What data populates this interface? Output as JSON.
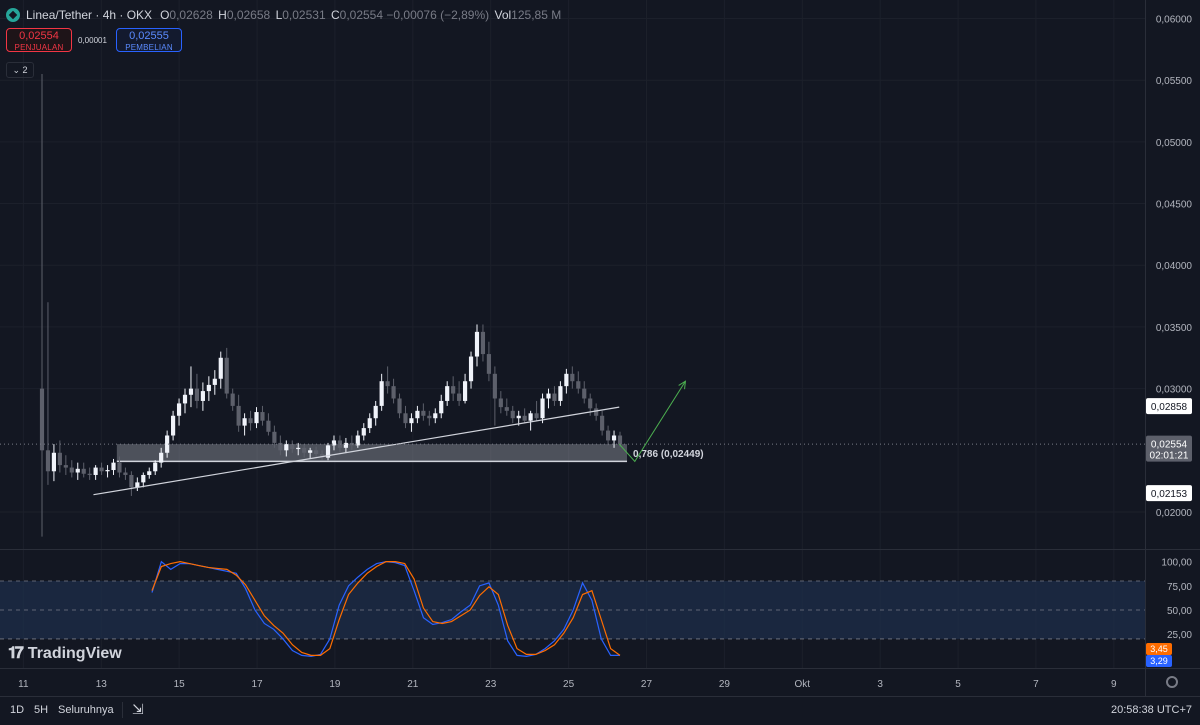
{
  "header": {
    "symbol": "Linea/Tether · 4h · OKX",
    "o_label": "O",
    "o_value": "0,02628",
    "h_label": "H",
    "h_value": "0,02658",
    "l_label": "L",
    "l_value": "0,02531",
    "c_label": "C",
    "c_value": "0,02554",
    "change": "−0,00076 (−2,89%)",
    "vol_label": "Vol",
    "vol_value": "125,85 M"
  },
  "trade": {
    "sell_price": "0,02554",
    "sell_label": "PENJUALAN",
    "spread": "0,00001",
    "buy_price": "0,02555",
    "buy_label": "PEMBELIAN"
  },
  "indicator_toggle": "⌄ 2",
  "brand": "TradingView",
  "footer": {
    "ranges": [
      "1D",
      "5H",
      "Seluruhnya"
    ],
    "time": "20:58:38 UTC+7"
  },
  "colors": {
    "background": "#131722",
    "candle_up": "#f0f3fa",
    "candle_down": "#5d606b",
    "support_zone": "#9598a1",
    "trendline": "#d1d4dc",
    "projection_arrow": "#4caf50",
    "stoch_k": "#2962ff",
    "stoch_d": "#ff6d00",
    "stoch_band": "#1e2d4a"
  },
  "chart_data": [
    {
      "type": "candlestick",
      "ylim": [
        0.017,
        0.0615
      ],
      "y_ticks": [
        "0,06000",
        "0,05500",
        "0,05000",
        "0,04500",
        "0,04000",
        "0,03500",
        "0,03000",
        "0,02000"
      ],
      "y_tick_values": [
        0.06,
        0.055,
        0.05,
        0.045,
        0.04,
        0.035,
        0.03,
        0.02
      ],
      "x_range_days": [
        10.4,
        39.8
      ],
      "x_ticks": [
        {
          "label": "11",
          "day": 11
        },
        {
          "label": "13",
          "day": 13
        },
        {
          "label": "15",
          "day": 15
        },
        {
          "label": "17",
          "day": 17
        },
        {
          "label": "19",
          "day": 19
        },
        {
          "label": "21",
          "day": 21
        },
        {
          "label": "23",
          "day": 23
        },
        {
          "label": "25",
          "day": 25
        },
        {
          "label": "27",
          "day": 27
        },
        {
          "label": "29",
          "day": 29
        },
        {
          "label": "Okt",
          "day": 31
        },
        {
          "label": "3",
          "day": 33
        },
        {
          "label": "5",
          "day": 35
        },
        {
          "label": "7",
          "day": 37
        },
        {
          "label": "9",
          "day": 39
        }
      ],
      "price_labels": [
        {
          "text": "0,02858",
          "value": 0.02858,
          "style": "white"
        },
        {
          "text": "0,02554",
          "sub": "02:01:21",
          "value": 0.02554,
          "style": "grey"
        },
        {
          "text": "0,02153",
          "value": 0.02153,
          "style": "white"
        }
      ],
      "candles": [
        {
          "o": 0.03,
          "h": 0.0555,
          "l": 0.018,
          "c": 0.025
        },
        {
          "o": 0.025,
          "h": 0.037,
          "l": 0.0222,
          "c": 0.0233
        },
        {
          "o": 0.0233,
          "h": 0.0255,
          "l": 0.0225,
          "c": 0.0248
        },
        {
          "o": 0.0248,
          "h": 0.0258,
          "l": 0.0232,
          "c": 0.0238
        },
        {
          "o": 0.0238,
          "h": 0.0246,
          "l": 0.023,
          "c": 0.0236
        },
        {
          "o": 0.0236,
          "h": 0.0242,
          "l": 0.0228,
          "c": 0.0232
        },
        {
          "o": 0.0232,
          "h": 0.024,
          "l": 0.0226,
          "c": 0.0235
        },
        {
          "o": 0.0235,
          "h": 0.024,
          "l": 0.0228,
          "c": 0.0231
        },
        {
          "o": 0.0231,
          "h": 0.0236,
          "l": 0.0226,
          "c": 0.023
        },
        {
          "o": 0.023,
          "h": 0.0238,
          "l": 0.0226,
          "c": 0.0236
        },
        {
          "o": 0.0236,
          "h": 0.024,
          "l": 0.023,
          "c": 0.0233
        },
        {
          "o": 0.0233,
          "h": 0.0238,
          "l": 0.0228,
          "c": 0.0234
        },
        {
          "o": 0.0234,
          "h": 0.0243,
          "l": 0.023,
          "c": 0.024
        },
        {
          "o": 0.024,
          "h": 0.0245,
          "l": 0.0228,
          "c": 0.0232
        },
        {
          "o": 0.0232,
          "h": 0.0236,
          "l": 0.0226,
          "c": 0.023
        },
        {
          "o": 0.023,
          "h": 0.0233,
          "l": 0.0213,
          "c": 0.022
        },
        {
          "o": 0.022,
          "h": 0.0228,
          "l": 0.0217,
          "c": 0.0224
        },
        {
          "o": 0.0224,
          "h": 0.0232,
          "l": 0.022,
          "c": 0.023
        },
        {
          "o": 0.023,
          "h": 0.0236,
          "l": 0.0227,
          "c": 0.0233
        },
        {
          "o": 0.0233,
          "h": 0.0242,
          "l": 0.023,
          "c": 0.024
        },
        {
          "o": 0.024,
          "h": 0.0252,
          "l": 0.0236,
          "c": 0.0248
        },
        {
          "o": 0.0248,
          "h": 0.0266,
          "l": 0.0244,
          "c": 0.0262
        },
        {
          "o": 0.0262,
          "h": 0.0282,
          "l": 0.0258,
          "c": 0.0278
        },
        {
          "o": 0.0278,
          "h": 0.0292,
          "l": 0.027,
          "c": 0.0288
        },
        {
          "o": 0.0288,
          "h": 0.03,
          "l": 0.028,
          "c": 0.0295
        },
        {
          "o": 0.0295,
          "h": 0.0318,
          "l": 0.0285,
          "c": 0.03
        },
        {
          "o": 0.03,
          "h": 0.0312,
          "l": 0.0284,
          "c": 0.029
        },
        {
          "o": 0.029,
          "h": 0.0305,
          "l": 0.0282,
          "c": 0.0298
        },
        {
          "o": 0.0298,
          "h": 0.031,
          "l": 0.029,
          "c": 0.0303
        },
        {
          "o": 0.0303,
          "h": 0.0315,
          "l": 0.0295,
          "c": 0.0308
        },
        {
          "o": 0.0308,
          "h": 0.033,
          "l": 0.03,
          "c": 0.0325
        },
        {
          "o": 0.0325,
          "h": 0.0333,
          "l": 0.0292,
          "c": 0.0296
        },
        {
          "o": 0.0296,
          "h": 0.03,
          "l": 0.0282,
          "c": 0.0286
        },
        {
          "o": 0.0286,
          "h": 0.0295,
          "l": 0.0265,
          "c": 0.027
        },
        {
          "o": 0.027,
          "h": 0.028,
          "l": 0.0262,
          "c": 0.0276
        },
        {
          "o": 0.0276,
          "h": 0.0282,
          "l": 0.0266,
          "c": 0.0272
        },
        {
          "o": 0.0272,
          "h": 0.0285,
          "l": 0.0268,
          "c": 0.0281
        },
        {
          "o": 0.0281,
          "h": 0.0286,
          "l": 0.027,
          "c": 0.0274
        },
        {
          "o": 0.0274,
          "h": 0.028,
          "l": 0.0262,
          "c": 0.0265
        },
        {
          "o": 0.0265,
          "h": 0.027,
          "l": 0.0252,
          "c": 0.0256
        },
        {
          "o": 0.0256,
          "h": 0.0262,
          "l": 0.0246,
          "c": 0.025
        },
        {
          "o": 0.025,
          "h": 0.0258,
          "l": 0.0245,
          "c": 0.0255
        },
        {
          "o": 0.0255,
          "h": 0.0258,
          "l": 0.0248,
          "c": 0.0251
        },
        {
          "o": 0.0251,
          "h": 0.0256,
          "l": 0.0246,
          "c": 0.0252
        },
        {
          "o": 0.0252,
          "h": 0.0255,
          "l": 0.0244,
          "c": 0.0248
        },
        {
          "o": 0.0248,
          "h": 0.0252,
          "l": 0.0243,
          "c": 0.025
        },
        {
          "o": 0.025,
          "h": 0.0253,
          "l": 0.0244,
          "c": 0.0247
        },
        {
          "o": 0.0247,
          "h": 0.025,
          "l": 0.0242,
          "c": 0.0244
        },
        {
          "o": 0.0244,
          "h": 0.0256,
          "l": 0.0242,
          "c": 0.0254
        },
        {
          "o": 0.0254,
          "h": 0.0262,
          "l": 0.025,
          "c": 0.0258
        },
        {
          "o": 0.0258,
          "h": 0.0262,
          "l": 0.0248,
          "c": 0.0252
        },
        {
          "o": 0.0252,
          "h": 0.026,
          "l": 0.0248,
          "c": 0.0256
        },
        {
          "o": 0.0256,
          "h": 0.0262,
          "l": 0.025,
          "c": 0.0254
        },
        {
          "o": 0.0254,
          "h": 0.0266,
          "l": 0.0252,
          "c": 0.0262
        },
        {
          "o": 0.0262,
          "h": 0.0272,
          "l": 0.0258,
          "c": 0.0268
        },
        {
          "o": 0.0268,
          "h": 0.028,
          "l": 0.0264,
          "c": 0.0276
        },
        {
          "o": 0.0276,
          "h": 0.029,
          "l": 0.027,
          "c": 0.0286
        },
        {
          "o": 0.0286,
          "h": 0.0312,
          "l": 0.0282,
          "c": 0.0306
        },
        {
          "o": 0.0306,
          "h": 0.0318,
          "l": 0.0296,
          "c": 0.0302
        },
        {
          "o": 0.0302,
          "h": 0.0308,
          "l": 0.0288,
          "c": 0.0292
        },
        {
          "o": 0.0292,
          "h": 0.0296,
          "l": 0.0276,
          "c": 0.028
        },
        {
          "o": 0.028,
          "h": 0.0286,
          "l": 0.0268,
          "c": 0.0272
        },
        {
          "o": 0.0272,
          "h": 0.028,
          "l": 0.0265,
          "c": 0.0276
        },
        {
          "o": 0.0276,
          "h": 0.0286,
          "l": 0.0272,
          "c": 0.0282
        },
        {
          "o": 0.0282,
          "h": 0.0288,
          "l": 0.0274,
          "c": 0.0278
        },
        {
          "o": 0.0278,
          "h": 0.0282,
          "l": 0.027,
          "c": 0.0276
        },
        {
          "o": 0.0276,
          "h": 0.0284,
          "l": 0.0272,
          "c": 0.028
        },
        {
          "o": 0.028,
          "h": 0.0295,
          "l": 0.0276,
          "c": 0.029
        },
        {
          "o": 0.029,
          "h": 0.0306,
          "l": 0.0286,
          "c": 0.0302
        },
        {
          "o": 0.0302,
          "h": 0.031,
          "l": 0.029,
          "c": 0.0296
        },
        {
          "o": 0.0296,
          "h": 0.0306,
          "l": 0.0286,
          "c": 0.029
        },
        {
          "o": 0.029,
          "h": 0.0312,
          "l": 0.0288,
          "c": 0.0306
        },
        {
          "o": 0.0306,
          "h": 0.033,
          "l": 0.03,
          "c": 0.0326
        },
        {
          "o": 0.0326,
          "h": 0.0352,
          "l": 0.0318,
          "c": 0.0346
        },
        {
          "o": 0.0346,
          "h": 0.0352,
          "l": 0.0322,
          "c": 0.0328
        },
        {
          "o": 0.0328,
          "h": 0.0338,
          "l": 0.0306,
          "c": 0.0312
        },
        {
          "o": 0.0312,
          "h": 0.0318,
          "l": 0.027,
          "c": 0.0292
        },
        {
          "o": 0.0292,
          "h": 0.0298,
          "l": 0.028,
          "c": 0.0285
        },
        {
          "o": 0.0285,
          "h": 0.0292,
          "l": 0.0278,
          "c": 0.0282
        },
        {
          "o": 0.0282,
          "h": 0.0286,
          "l": 0.0272,
          "c": 0.0276
        },
        {
          "o": 0.0276,
          "h": 0.0282,
          "l": 0.027,
          "c": 0.0278
        },
        {
          "o": 0.0278,
          "h": 0.0284,
          "l": 0.0272,
          "c": 0.0274
        },
        {
          "o": 0.0274,
          "h": 0.0282,
          "l": 0.0266,
          "c": 0.028
        },
        {
          "o": 0.028,
          "h": 0.029,
          "l": 0.0274,
          "c": 0.0276
        },
        {
          "o": 0.0276,
          "h": 0.0296,
          "l": 0.0272,
          "c": 0.0292
        },
        {
          "o": 0.0292,
          "h": 0.03,
          "l": 0.0284,
          "c": 0.0296
        },
        {
          "o": 0.0296,
          "h": 0.0302,
          "l": 0.0286,
          "c": 0.029
        },
        {
          "o": 0.029,
          "h": 0.0306,
          "l": 0.0286,
          "c": 0.0302
        },
        {
          "o": 0.0302,
          "h": 0.0316,
          "l": 0.0296,
          "c": 0.0312
        },
        {
          "o": 0.0312,
          "h": 0.0318,
          "l": 0.03,
          "c": 0.0306
        },
        {
          "o": 0.0306,
          "h": 0.0314,
          "l": 0.0296,
          "c": 0.03
        },
        {
          "o": 0.03,
          "h": 0.0306,
          "l": 0.0288,
          "c": 0.0292
        },
        {
          "o": 0.0292,
          "h": 0.0296,
          "l": 0.0278,
          "c": 0.0284
        },
        {
          "o": 0.0284,
          "h": 0.0288,
          "l": 0.0274,
          "c": 0.0278
        },
        {
          "o": 0.0278,
          "h": 0.0282,
          "l": 0.0262,
          "c": 0.0266
        },
        {
          "o": 0.0266,
          "h": 0.027,
          "l": 0.0254,
          "c": 0.0258
        },
        {
          "o": 0.0258,
          "h": 0.0266,
          "l": 0.0252,
          "c": 0.0262
        },
        {
          "o": 0.0262,
          "h": 0.0265,
          "l": 0.0253,
          "c": 0.0255
        }
      ],
      "annotations": [
        {
          "type": "zone",
          "label": "0,786 (0,02449)",
          "y_top": 0.0255,
          "y_bottom": 0.0241,
          "day_start": 13.4,
          "day_end": 26.5
        },
        {
          "type": "trendline",
          "from": {
            "day": 12.8,
            "price": 0.0214
          },
          "to": {
            "day": 26.3,
            "price": 0.0285
          }
        },
        {
          "type": "arrow",
          "points": [
            {
              "day": 26.3,
              "price": 0.0255
            },
            {
              "day": 26.7,
              "price": 0.0241
            },
            {
              "day": 28.0,
              "price": 0.0306
            }
          ]
        }
      ]
    },
    {
      "type": "line",
      "name": "stochastic-rsi",
      "ylim": [
        -8,
        110
      ],
      "y_ticks": [
        "100,00",
        "75,00",
        "50,00",
        "25,00"
      ],
      "y_tick_values": [
        100,
        75,
        50,
        25
      ],
      "bands": [
        20,
        50,
        80
      ],
      "last_values": [
        {
          "label": "3,45",
          "color": "#ff6d00"
        },
        {
          "label": "3,29",
          "color": "#2962ff"
        }
      ],
      "series": [
        {
          "color": "#2962ff",
          "values": [
            68,
            100,
            92,
            98,
            98,
            96,
            94,
            92,
            90,
            88,
            72,
            50,
            36,
            30,
            20,
            8,
            3,
            2,
            4,
            20,
            55,
            75,
            84,
            92,
            98,
            100,
            99,
            96,
            70,
            42,
            35,
            37,
            40,
            48,
            55,
            75,
            78,
            55,
            18,
            3,
            2,
            4,
            10,
            18,
            30,
            50,
            78,
            60,
            20,
            3,
            3
          ]
        },
        {
          "color": "#ff6d00",
          "values": [
            70,
            95,
            98,
            100,
            98,
            96,
            94,
            93,
            92,
            86,
            76,
            60,
            44,
            34,
            26,
            14,
            6,
            3,
            3,
            10,
            40,
            66,
            78,
            88,
            95,
            100,
            100,
            98,
            82,
            52,
            38,
            36,
            38,
            44,
            50,
            65,
            74,
            66,
            34,
            10,
            4,
            4,
            8,
            14,
            26,
            42,
            66,
            70,
            40,
            10,
            3
          ]
        }
      ]
    }
  ]
}
